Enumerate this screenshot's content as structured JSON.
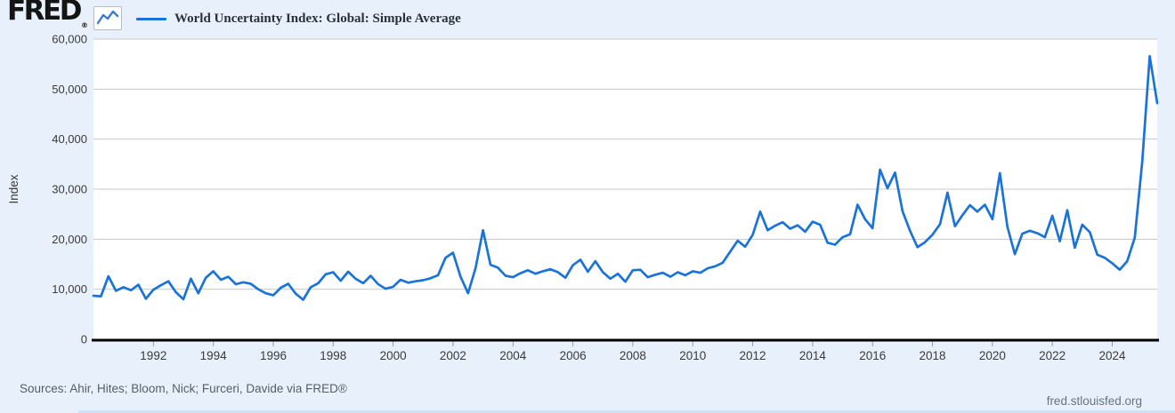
{
  "header": {
    "logo_text": "FRED",
    "logo_registered": "®",
    "legend_label": "World Uncertainty Index: Global: Simple Average"
  },
  "footer": {
    "sources": "Sources: Ahir, Hites; Bloom, Nick; Furceri, Davide via FRED®",
    "site": "fred.stlouisfed.org"
  },
  "colors": {
    "accent": "#1a73d9",
    "background": "#e8f1fb",
    "plot_background": "#ffffff",
    "gridline": "#c9c9c9",
    "axis_line": "#000000",
    "tick_mark": "#999999",
    "axis_text": "#3a3a3a",
    "muted_text": "#565d66"
  },
  "icons": {
    "logo_chart_icon": "line-chart-zigzag"
  },
  "chart_data": {
    "type": "line",
    "title": "World Uncertainty Index: Global: Simple Average",
    "xlabel": "",
    "ylabel": "Index",
    "ylim": [
      0,
      60000
    ],
    "ytick_values": [
      0,
      10000,
      20000,
      30000,
      40000,
      50000,
      60000
    ],
    "ytick_labels": [
      "0",
      "10,000",
      "20,000",
      "30,000",
      "40,000",
      "50,000",
      "60,000"
    ],
    "xtick_years": [
      1992,
      1994,
      1996,
      1998,
      2000,
      2002,
      2004,
      2006,
      2008,
      2010,
      2012,
      2014,
      2016,
      2018,
      2020,
      2022,
      2024
    ],
    "x_start_year": 1990,
    "x_end": "2025 Q3",
    "frequency": "quarterly",
    "grid": "horizontal",
    "legend_position": "top-left",
    "series": [
      {
        "name": "World Uncertainty Index: Global: Simple Average",
        "values": [
          8700,
          8600,
          12600,
          9700,
          10400,
          9800,
          10900,
          8100,
          9900,
          10800,
          11600,
          9400,
          8000,
          12100,
          9200,
          12300,
          13600,
          11900,
          12500,
          11000,
          11400,
          11100,
          10000,
          9200,
          8800,
          10300,
          11100,
          9100,
          7900,
          10400,
          11200,
          13000,
          13400,
          11700,
          13500,
          12100,
          11200,
          12700,
          11000,
          10100,
          10500,
          11900,
          11300,
          11600,
          11800,
          12200,
          12800,
          16300,
          17300,
          12500,
          9200,
          14200,
          21800,
          14900,
          14300,
          12700,
          12400,
          13200,
          13800,
          13100,
          13600,
          14000,
          13400,
          12300,
          14800,
          15900,
          13500,
          15600,
          13400,
          12100,
          13100,
          11500,
          13800,
          13900,
          12400,
          12900,
          13300,
          12500,
          13400,
          12800,
          13600,
          13300,
          14200,
          14600,
          15300,
          17500,
          19700,
          18500,
          20900,
          25500,
          21800,
          22700,
          23400,
          22100,
          22800,
          21500,
          23500,
          22900,
          19300,
          18900,
          20400,
          21000,
          26900,
          24000,
          22200,
          33900,
          30200,
          33300,
          25600,
          21700,
          18400,
          19400,
          20900,
          23000,
          29300,
          22600,
          24800,
          26800,
          25500,
          26900,
          24000,
          33200,
          22500,
          17000,
          21100,
          21700,
          21200,
          20400,
          24700,
          19600,
          25800,
          18300,
          22900,
          21400,
          16900,
          16300,
          15200,
          13900,
          15600,
          20300,
          35500,
          56600,
          47200
        ]
      }
    ]
  }
}
